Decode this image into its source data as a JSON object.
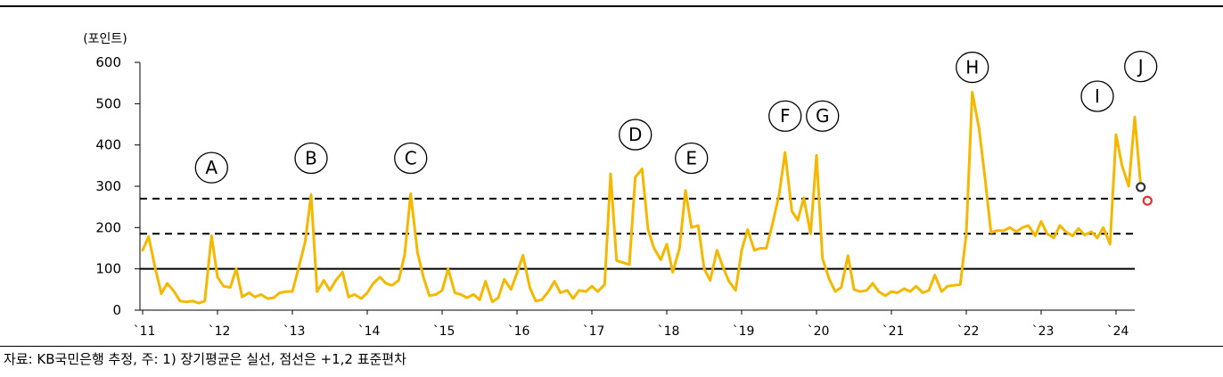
{
  "chart_data": {
    "type": "line",
    "unit_label": "(포인트)",
    "ylim": [
      0,
      600
    ],
    "yticks": [
      "0",
      "100",
      "200",
      "300",
      "400",
      "500",
      "600"
    ],
    "x_range": [
      2011.0,
      2024.25
    ],
    "xticks": [
      {
        "label": "`11",
        "x": 2011
      },
      {
        "label": "`12",
        "x": 2012
      },
      {
        "label": "`13",
        "x": 2013
      },
      {
        "label": "`14",
        "x": 2014
      },
      {
        "label": "`15",
        "x": 2015
      },
      {
        "label": "`16",
        "x": 2016
      },
      {
        "label": "`17",
        "x": 2017
      },
      {
        "label": "`18",
        "x": 2018
      },
      {
        "label": "`19",
        "x": 2019
      },
      {
        "label": "`20",
        "x": 2020
      },
      {
        "label": "`21",
        "x": 2021
      },
      {
        "label": "`22",
        "x": 2022
      },
      {
        "label": "`23",
        "x": 2023
      },
      {
        "label": "`24",
        "x": 2024
      }
    ],
    "reference_lines": [
      {
        "style": "solid",
        "y": 100
      },
      {
        "style": "dashed",
        "y": 185
      },
      {
        "style": "dashed",
        "y": 270
      }
    ],
    "series": [
      {
        "color": "#F5B800",
        "points": [
          [
            2011.0,
            145
          ],
          [
            2011.08,
            178
          ],
          [
            2011.17,
            100
          ],
          [
            2011.25,
            40
          ],
          [
            2011.33,
            65
          ],
          [
            2011.42,
            45
          ],
          [
            2011.5,
            22
          ],
          [
            2011.58,
            20
          ],
          [
            2011.67,
            22
          ],
          [
            2011.75,
            17
          ],
          [
            2011.83,
            22
          ],
          [
            2011.92,
            180
          ],
          [
            2012.0,
            80
          ],
          [
            2012.08,
            58
          ],
          [
            2012.17,
            55
          ],
          [
            2012.25,
            100
          ],
          [
            2012.33,
            32
          ],
          [
            2012.42,
            42
          ],
          [
            2012.5,
            32
          ],
          [
            2012.58,
            38
          ],
          [
            2012.67,
            28
          ],
          [
            2012.75,
            30
          ],
          [
            2012.83,
            42
          ],
          [
            2012.92,
            45
          ],
          [
            2013.0,
            45
          ],
          [
            2013.08,
            100
          ],
          [
            2013.17,
            165
          ],
          [
            2013.25,
            280
          ],
          [
            2013.33,
            45
          ],
          [
            2013.42,
            72
          ],
          [
            2013.5,
            48
          ],
          [
            2013.58,
            72
          ],
          [
            2013.67,
            92
          ],
          [
            2013.75,
            32
          ],
          [
            2013.83,
            38
          ],
          [
            2013.92,
            28
          ],
          [
            2014.0,
            42
          ],
          [
            2014.08,
            65
          ],
          [
            2014.17,
            80
          ],
          [
            2014.25,
            65
          ],
          [
            2014.33,
            60
          ],
          [
            2014.42,
            72
          ],
          [
            2014.5,
            135
          ],
          [
            2014.58,
            282
          ],
          [
            2014.67,
            140
          ],
          [
            2014.75,
            80
          ],
          [
            2014.83,
            35
          ],
          [
            2014.92,
            38
          ],
          [
            2015.0,
            48
          ],
          [
            2015.08,
            100
          ],
          [
            2015.17,
            42
          ],
          [
            2015.25,
            38
          ],
          [
            2015.33,
            30
          ],
          [
            2015.42,
            38
          ],
          [
            2015.5,
            25
          ],
          [
            2015.58,
            70
          ],
          [
            2015.67,
            20
          ],
          [
            2015.75,
            30
          ],
          [
            2015.83,
            75
          ],
          [
            2015.92,
            50
          ],
          [
            2016.0,
            90
          ],
          [
            2016.08,
            133
          ],
          [
            2016.17,
            55
          ],
          [
            2016.25,
            22
          ],
          [
            2016.33,
            25
          ],
          [
            2016.42,
            45
          ],
          [
            2016.5,
            70
          ],
          [
            2016.58,
            42
          ],
          [
            2016.67,
            48
          ],
          [
            2016.75,
            28
          ],
          [
            2016.83,
            48
          ],
          [
            2016.92,
            45
          ],
          [
            2017.0,
            58
          ],
          [
            2017.08,
            45
          ],
          [
            2017.17,
            62
          ],
          [
            2017.25,
            330
          ],
          [
            2017.33,
            120
          ],
          [
            2017.42,
            115
          ],
          [
            2017.5,
            110
          ],
          [
            2017.58,
            322
          ],
          [
            2017.67,
            342
          ],
          [
            2017.75,
            195
          ],
          [
            2017.83,
            150
          ],
          [
            2017.92,
            122
          ],
          [
            2018.0,
            160
          ],
          [
            2018.08,
            92
          ],
          [
            2018.17,
            150
          ],
          [
            2018.25,
            290
          ],
          [
            2018.33,
            200
          ],
          [
            2018.42,
            205
          ],
          [
            2018.5,
            100
          ],
          [
            2018.58,
            72
          ],
          [
            2018.67,
            145
          ],
          [
            2018.75,
            105
          ],
          [
            2018.83,
            70
          ],
          [
            2018.92,
            48
          ],
          [
            2019.0,
            145
          ],
          [
            2019.08,
            195
          ],
          [
            2019.17,
            145
          ],
          [
            2019.25,
            150
          ],
          [
            2019.33,
            150
          ],
          [
            2019.42,
            215
          ],
          [
            2019.5,
            280
          ],
          [
            2019.58,
            382
          ],
          [
            2019.67,
            240
          ],
          [
            2019.75,
            218
          ],
          [
            2019.83,
            272
          ],
          [
            2019.92,
            185
          ],
          [
            2020.0,
            375
          ],
          [
            2020.08,
            125
          ],
          [
            2020.17,
            75
          ],
          [
            2020.25,
            45
          ],
          [
            2020.33,
            55
          ],
          [
            2020.42,
            132
          ],
          [
            2020.5,
            50
          ],
          [
            2020.58,
            45
          ],
          [
            2020.67,
            48
          ],
          [
            2020.75,
            65
          ],
          [
            2020.83,
            45
          ],
          [
            2020.92,
            35
          ],
          [
            2021.0,
            45
          ],
          [
            2021.08,
            42
          ],
          [
            2021.17,
            52
          ],
          [
            2021.25,
            45
          ],
          [
            2021.33,
            58
          ],
          [
            2021.42,
            42
          ],
          [
            2021.5,
            48
          ],
          [
            2021.58,
            85
          ],
          [
            2021.67,
            45
          ],
          [
            2021.75,
            58
          ],
          [
            2021.83,
            60
          ],
          [
            2021.92,
            62
          ],
          [
            2022.0,
            185
          ],
          [
            2022.08,
            528
          ],
          [
            2022.17,
            440
          ],
          [
            2022.25,
            320
          ],
          [
            2022.33,
            188
          ],
          [
            2022.42,
            193
          ],
          [
            2022.5,
            192
          ],
          [
            2022.58,
            200
          ],
          [
            2022.67,
            190
          ],
          [
            2022.75,
            200
          ],
          [
            2022.83,
            205
          ],
          [
            2022.92,
            180
          ],
          [
            2023.0,
            215
          ],
          [
            2023.08,
            185
          ],
          [
            2023.17,
            175
          ],
          [
            2023.25,
            205
          ],
          [
            2023.33,
            190
          ],
          [
            2023.42,
            180
          ],
          [
            2023.5,
            198
          ],
          [
            2023.58,
            182
          ],
          [
            2023.67,
            190
          ],
          [
            2023.75,
            175
          ],
          [
            2023.83,
            200
          ],
          [
            2023.92,
            160
          ],
          [
            2024.0,
            425
          ],
          [
            2024.08,
            350
          ],
          [
            2024.17,
            300
          ],
          [
            2024.25,
            468
          ],
          [
            2024.33,
            300
          ]
        ]
      }
    ],
    "markers": [
      {
        "x": 2024.33,
        "y": 298,
        "color": "#333333"
      },
      {
        "x": 2024.42,
        "y": 265,
        "color": "#E53030"
      }
    ],
    "annotations": [
      {
        "label": "A",
        "x": 2011.92,
        "y": 345
      },
      {
        "label": "B",
        "x": 2013.25,
        "y": 368
      },
      {
        "label": "C",
        "x": 2014.58,
        "y": 368
      },
      {
        "label": "D",
        "x": 2017.58,
        "y": 425
      },
      {
        "label": "E",
        "x": 2018.33,
        "y": 368
      },
      {
        "label": "F",
        "x": 2019.58,
        "y": 470
      },
      {
        "label": "G",
        "x": 2020.08,
        "y": 470
      },
      {
        "label": "H",
        "x": 2022.08,
        "y": 588
      },
      {
        "label": "I",
        "x": 2023.75,
        "y": 518
      },
      {
        "label": "J",
        "x": 2024.33,
        "y": 590
      }
    ]
  },
  "footnote": "자료: KB국민은행 추정, 주: 1) 장기평균은 실선, 점선은 +1,2 표준편차"
}
